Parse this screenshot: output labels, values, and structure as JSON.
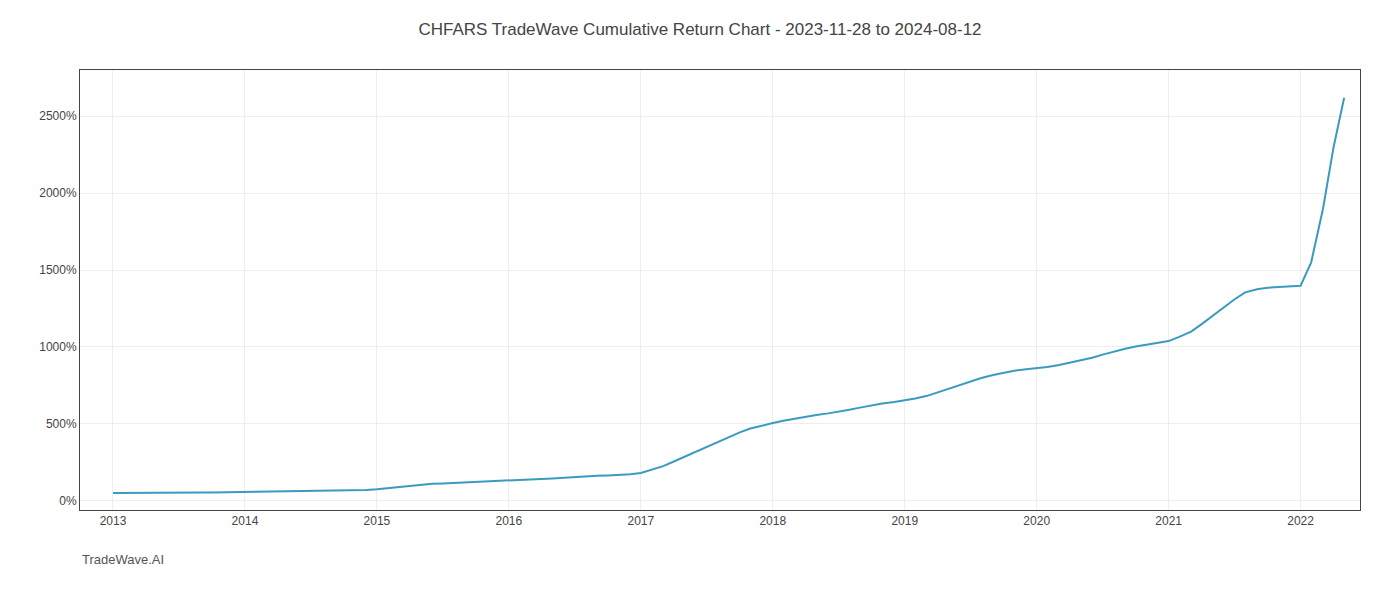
{
  "chart_data": {
    "type": "line",
    "title": "CHFARS TradeWave Cumulative Return Chart - 2023-11-28 to 2024-08-12",
    "annotations": [
      "TradeWave.AI"
    ],
    "color": "#3a9bbf",
    "grid": true,
    "x": [
      2013.0,
      2013.08,
      2013.17,
      2013.25,
      2013.33,
      2013.42,
      2013.5,
      2013.58,
      2013.67,
      2013.75,
      2013.83,
      2013.92,
      2014.0,
      2014.08,
      2014.17,
      2014.25,
      2014.33,
      2014.42,
      2014.5,
      2014.58,
      2014.67,
      2014.75,
      2014.83,
      2014.92,
      2015.0,
      2015.08,
      2015.17,
      2015.25,
      2015.33,
      2015.42,
      2015.5,
      2015.58,
      2015.67,
      2015.75,
      2015.83,
      2015.92,
      2016.0,
      2016.08,
      2016.17,
      2016.25,
      2016.33,
      2016.42,
      2016.5,
      2016.58,
      2016.67,
      2016.75,
      2016.83,
      2016.92,
      2017.0,
      2017.08,
      2017.17,
      2017.25,
      2017.33,
      2017.42,
      2017.5,
      2017.58,
      2017.67,
      2017.75,
      2017.83,
      2017.92,
      2018.0,
      2018.08,
      2018.17,
      2018.25,
      2018.33,
      2018.42,
      2018.5,
      2018.58,
      2018.67,
      2018.75,
      2018.83,
      2018.92,
      2019.0,
      2019.08,
      2019.17,
      2019.25,
      2019.33,
      2019.42,
      2019.5,
      2019.58,
      2019.67,
      2019.75,
      2019.83,
      2019.92,
      2020.0,
      2020.08,
      2020.17,
      2020.25,
      2020.33,
      2020.42,
      2020.5,
      2020.58,
      2020.67,
      2020.75,
      2020.83,
      2020.92,
      2021.0,
      2021.08,
      2021.17,
      2021.25,
      2021.33,
      2021.42,
      2021.5,
      2021.58,
      2021.67,
      2021.75,
      2021.83,
      2021.92,
      2022.0,
      2022.08,
      2022.17,
      2022.25,
      2022.33
    ],
    "values": [
      50,
      51,
      51,
      52,
      52,
      52,
      53,
      53,
      54,
      54,
      55,
      56,
      58,
      59,
      60,
      61,
      62,
      63,
      64,
      65,
      66,
      67,
      68,
      70,
      75,
      82,
      90,
      98,
      105,
      110,
      113,
      116,
      118,
      120,
      122,
      125,
      128,
      132,
      136,
      140,
      145,
      150,
      155,
      158,
      162,
      165,
      168,
      172,
      180,
      200,
      225,
      255,
      285,
      318,
      350,
      382,
      415,
      445,
      470,
      490,
      505,
      520,
      535,
      548,
      558,
      568,
      578,
      592,
      607,
      620,
      632,
      642,
      652,
      665,
      682,
      705,
      728,
      752,
      775,
      798,
      818,
      833,
      845,
      855,
      862,
      870,
      882,
      896,
      912,
      930,
      950,
      970,
      988,
      1003,
      1015,
      1025,
      1038,
      1065,
      1100,
      1148,
      1200,
      1255,
      1310,
      1355,
      1375,
      1385,
      1390,
      1393,
      1398,
      1550,
      1900,
      2300,
      2620
    ],
    "xlim": [
      2012.75,
      2022.45
    ],
    "xticks": [
      2013,
      2014,
      2015,
      2016,
      2017,
      2018,
      2019,
      2020,
      2021,
      2022
    ],
    "ylim": [
      -60,
      2800
    ],
    "yticks": [
      {
        "value": 0,
        "label": "0%"
      },
      {
        "value": 500,
        "label": "500%"
      },
      {
        "value": 1000,
        "label": "1000%"
      },
      {
        "value": 1500,
        "label": "1500%"
      },
      {
        "value": 2000,
        "label": "2000%"
      },
      {
        "value": 2500,
        "label": "2500%"
      }
    ]
  }
}
